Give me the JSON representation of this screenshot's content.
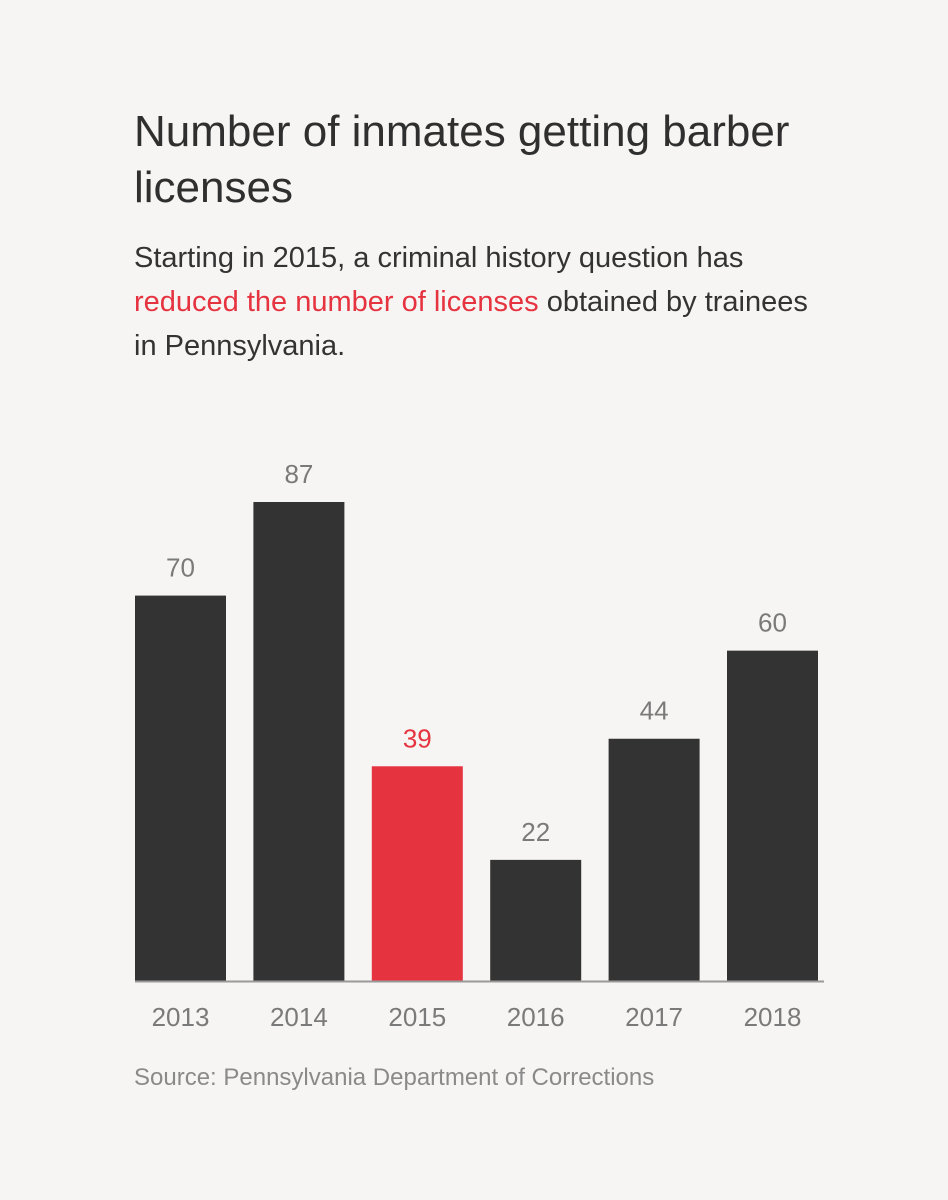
{
  "header": {
    "title": "Number of inmates getting barber licenses",
    "subtitle_before": "Starting in 2015, a criminal history question has ",
    "subtitle_highlight": "reduced the number of licenses",
    "subtitle_after": " obtained by trainees in Pennsylvania."
  },
  "footer": {
    "source": "Source: Pennsylvania Department of Corrections"
  },
  "colors": {
    "bar": "#333333",
    "highlight": "#e63340",
    "label": "#7a7a7a",
    "axis": "#999999",
    "background": "#f6f5f3"
  },
  "chart_data": {
    "type": "bar",
    "categories": [
      "2013",
      "2014",
      "2015",
      "2016",
      "2017",
      "2018"
    ],
    "values": [
      70,
      87,
      39,
      22,
      44,
      60
    ],
    "highlight_category": "2015",
    "title": "Number of inmates getting barber licenses",
    "xlabel": "",
    "ylabel": "",
    "ylim": [
      0,
      87
    ],
    "grid": false,
    "legend": "none"
  }
}
